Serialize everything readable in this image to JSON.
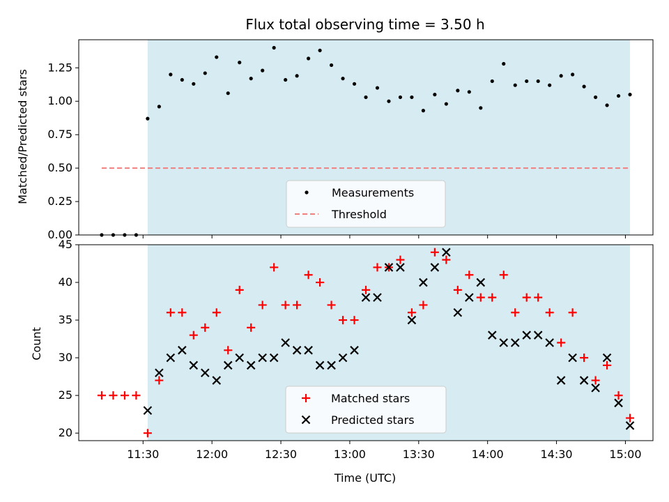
{
  "chart_data": [
    {
      "type": "scatter",
      "title": "Flux total observing time = 3.50 h",
      "ylabel": "Matched/Predicted stars",
      "xlabel": "",
      "ylim": [
        0.0,
        1.46
      ],
      "yticks": [
        "0.00",
        "0.25",
        "0.50",
        "0.75",
        "1.00",
        "1.25"
      ],
      "shaded_span": [
        "11:32",
        "15:02"
      ],
      "shade_color": "#add8e6",
      "legend_placement": "lower-center",
      "series": [
        {
          "name": "Measurements",
          "marker": "dot",
          "color": "#000000",
          "x": [
            "11:12",
            "11:17",
            "11:22",
            "11:27",
            "11:32",
            "11:37",
            "11:42",
            "11:47",
            "11:52",
            "11:57",
            "12:02",
            "12:07",
            "12:12",
            "12:17",
            "12:22",
            "12:27",
            "12:32",
            "12:37",
            "12:42",
            "12:47",
            "12:52",
            "12:57",
            "13:02",
            "13:07",
            "13:12",
            "13:17",
            "13:22",
            "13:27",
            "13:32",
            "13:37",
            "13:42",
            "13:47",
            "13:52",
            "13:57",
            "14:02",
            "14:07",
            "14:12",
            "14:17",
            "14:22",
            "14:27",
            "14:32",
            "14:37",
            "14:42",
            "14:47",
            "14:52",
            "14:57",
            "15:02"
          ],
          "y": [
            0.0,
            0.0,
            0.0,
            0.0,
            0.87,
            0.96,
            1.2,
            1.16,
            1.13,
            1.21,
            1.33,
            1.06,
            1.29,
            1.17,
            1.23,
            1.4,
            1.16,
            1.19,
            1.32,
            1.38,
            1.27,
            1.17,
            1.13,
            1.03,
            1.1,
            1.0,
            1.03,
            1.03,
            0.93,
            1.05,
            0.98,
            1.08,
            1.07,
            0.95,
            1.15,
            1.28,
            1.12,
            1.15,
            1.15,
            1.12,
            1.19,
            1.2,
            1.11,
            1.03,
            0.97,
            1.04,
            1.05
          ]
        },
        {
          "name": "Threshold",
          "type": "line",
          "style": "dashed",
          "color": "#f08080",
          "x": [
            "11:12",
            "15:02"
          ],
          "y": [
            0.5,
            0.5
          ]
        }
      ]
    },
    {
      "type": "scatter",
      "title": "",
      "ylabel": "Count",
      "xlabel": "Time (UTC)",
      "ylim": [
        19,
        45
      ],
      "yticks": [
        "20",
        "25",
        "30",
        "35",
        "40",
        "45"
      ],
      "xticks": [
        "11:30",
        "12:00",
        "12:30",
        "13:00",
        "13:30",
        "14:00",
        "14:30",
        "15:00"
      ],
      "shaded_span": [
        "11:32",
        "15:02"
      ],
      "shade_color": "#add8e6",
      "legend_placement": "lower-center",
      "series": [
        {
          "name": "Matched stars",
          "marker": "plus",
          "color": "#ff0000",
          "x": [
            "11:12",
            "11:17",
            "11:22",
            "11:27",
            "11:32",
            "11:37",
            "11:42",
            "11:47",
            "11:52",
            "11:57",
            "12:02",
            "12:07",
            "12:12",
            "12:17",
            "12:22",
            "12:27",
            "12:32",
            "12:37",
            "12:42",
            "12:47",
            "12:52",
            "12:57",
            "13:02",
            "13:07",
            "13:12",
            "13:17",
            "13:22",
            "13:27",
            "13:32",
            "13:37",
            "13:42",
            "13:47",
            "13:52",
            "13:57",
            "14:02",
            "14:07",
            "14:12",
            "14:17",
            "14:22",
            "14:27",
            "14:32",
            "14:37",
            "14:42",
            "14:47",
            "14:52",
            "14:57",
            "15:02"
          ],
          "y": [
            25,
            25,
            25,
            25,
            20,
            27,
            36,
            36,
            33,
            34,
            36,
            31,
            39,
            34,
            37,
            42,
            37,
            37,
            41,
            40,
            37,
            35,
            35,
            39,
            42,
            42,
            43,
            36,
            37,
            44,
            43,
            39,
            41,
            38,
            38,
            41,
            36,
            38,
            38,
            36,
            32,
            36,
            30,
            27,
            29,
            25,
            22
          ]
        },
        {
          "name": "Predicted stars",
          "marker": "x",
          "color": "#000000",
          "x": [
            "11:32",
            "11:37",
            "11:42",
            "11:47",
            "11:52",
            "11:57",
            "12:02",
            "12:07",
            "12:12",
            "12:17",
            "12:22",
            "12:27",
            "12:32",
            "12:37",
            "12:42",
            "12:47",
            "12:52",
            "12:57",
            "13:02",
            "13:07",
            "13:12",
            "13:17",
            "13:22",
            "13:27",
            "13:32",
            "13:37",
            "13:42",
            "13:47",
            "13:52",
            "13:57",
            "14:02",
            "14:07",
            "14:12",
            "14:17",
            "14:22",
            "14:27",
            "14:32",
            "14:37",
            "14:42",
            "14:47",
            "14:52",
            "14:57",
            "15:02"
          ],
          "y": [
            23,
            28,
            30,
            31,
            29,
            28,
            27,
            29,
            30,
            29,
            30,
            30,
            32,
            31,
            31,
            29,
            29,
            30,
            31,
            38,
            38,
            42,
            42,
            35,
            40,
            42,
            44,
            36,
            38,
            40,
            33,
            32,
            32,
            33,
            33,
            32,
            27,
            30,
            27,
            26,
            30,
            24,
            21
          ]
        }
      ]
    }
  ]
}
